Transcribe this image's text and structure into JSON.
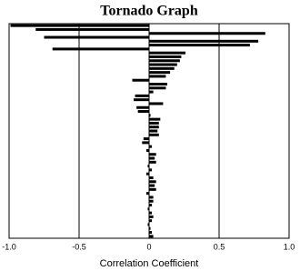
{
  "chart_data": {
    "type": "bar",
    "orientation": "horizontal",
    "title": "Tornado Graph",
    "x_label": "Correlation Coefficient",
    "categories": [
      null,
      null,
      null,
      null,
      null,
      null,
      null,
      null,
      null,
      null,
      null,
      null,
      null,
      null,
      null,
      null,
      null,
      null,
      null,
      null,
      null,
      null,
      null,
      null,
      null,
      null,
      null,
      null,
      null,
      null,
      null,
      null,
      null,
      null,
      null,
      null,
      null,
      null,
      null,
      null,
      null,
      null,
      null,
      null,
      null,
      null,
      null,
      null,
      null,
      null,
      null,
      null,
      null,
      null,
      null
    ],
    "values": [
      -0.99,
      -0.81,
      0.83,
      -0.75,
      0.78,
      0.72,
      -0.69,
      0.26,
      0.23,
      0.22,
      0.2,
      0.18,
      0.15,
      0.12,
      -0.12,
      0.13,
      0.12,
      0.03,
      -0.1,
      -0.11,
      0.1,
      -0.09,
      -0.08,
      0.01,
      0.08,
      0.07,
      0.07,
      0.06,
      0.07,
      -0.04,
      -0.05,
      0.02,
      -0.02,
      0.05,
      0.04,
      0.05,
      -0.01,
      0.02,
      -0.02,
      0.03,
      0.05,
      0.04,
      0.05,
      -0.02,
      0.03,
      0.03,
      0.02,
      -0.01,
      0.02,
      0.03,
      0.02,
      -0.01,
      0.01,
      0.02,
      0.03
    ],
    "color": "#000000",
    "xlim": [
      -1,
      1
    ],
    "xticks": [
      {
        "value": -1,
        "label": "-1.0"
      },
      -0.5,
      0,
      0.5,
      {
        "value": 1,
        "label": "1.0"
      }
    ],
    "grid": true
  }
}
